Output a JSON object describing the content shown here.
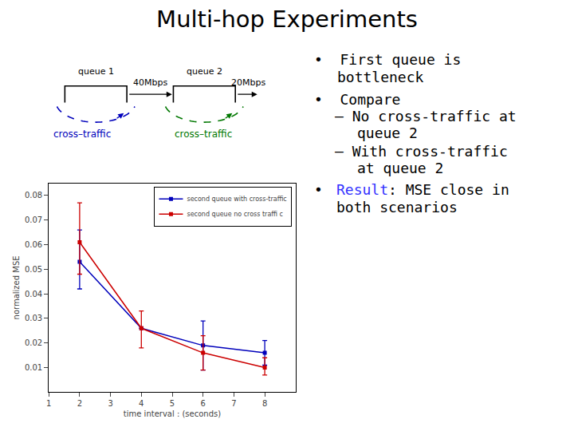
{
  "chart_data": {
    "type": "line",
    "title": "Multi-hop Experiments",
    "x": [
      2,
      4,
      6,
      8
    ],
    "series": [
      {
        "name": "second queue with cross-traffic",
        "color": "#0000bb",
        "marker": "square",
        "values": [
          0.053,
          0.026,
          0.019,
          0.016
        ],
        "yerr_lo": [
          0.011,
          0.0,
          0.01,
          0.005
        ],
        "yerr_hi": [
          0.013,
          0.0,
          0.01,
          0.005
        ]
      },
      {
        "name": "second queue no cross traffi c",
        "color": "#cc0000",
        "marker": "square",
        "values": [
          0.061,
          0.026,
          0.016,
          0.01
        ],
        "yerr_lo": [
          0.013,
          0.008,
          0.007,
          0.003
        ],
        "yerr_hi": [
          0.016,
          0.007,
          0.007,
          0.004
        ]
      }
    ],
    "xlabel": "time interval : (seconds)",
    "ylabel": "normalized MSE",
    "xlim": [
      1,
      9
    ],
    "ylim": [
      0.0,
      0.085
    ],
    "xticks": [
      1,
      2,
      3,
      4,
      5,
      6,
      7,
      8
    ],
    "yticks": [
      0.01,
      0.02,
      0.03,
      0.04,
      0.05,
      0.06,
      0.07,
      0.08
    ],
    "grid": false,
    "legend": "upper right",
    "annotations": [
      {
        "text": "queue 1"
      },
      {
        "text": "queue 2"
      },
      {
        "text": "40Mbps"
      },
      {
        "text": "20Mbps"
      },
      {
        "text": "cross–traffic",
        "color": "#0000bb"
      },
      {
        "text": "cross–traffic",
        "color": "#007700"
      },
      {
        "text": "•  First queue is"
      },
      {
        "text": "bottleneck"
      },
      {
        "text": "•  Compare"
      },
      {
        "text": "– No cross-traffic at"
      },
      {
        "text": "queue 2"
      },
      {
        "text": "– With cross-traffic"
      },
      {
        "text": "at queue 2"
      },
      {
        "text": "•  "
      },
      {
        "text": "Result",
        "color": "#3333ff"
      },
      {
        "text": ": MSE close in"
      },
      {
        "text": "both scenarios"
      }
    ]
  }
}
